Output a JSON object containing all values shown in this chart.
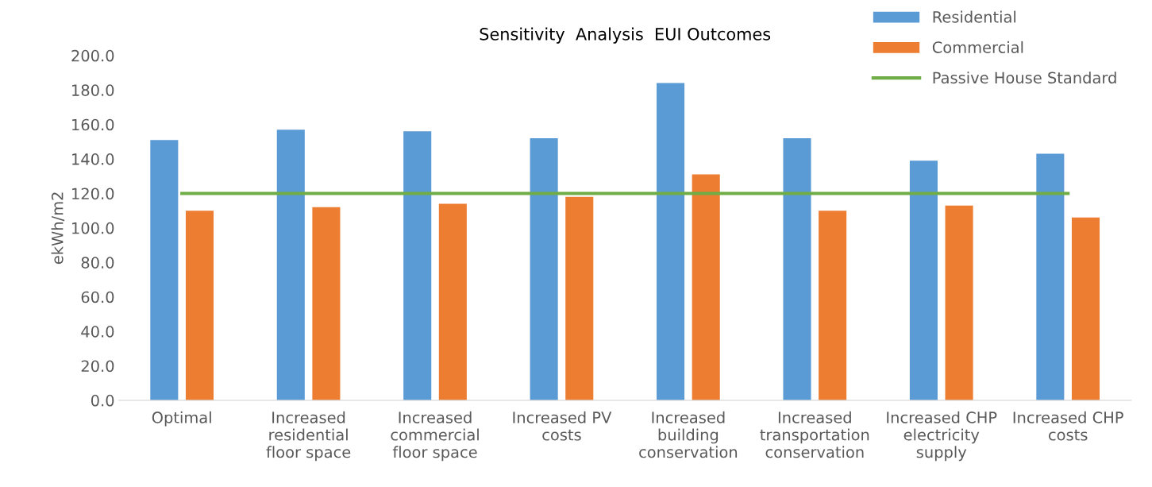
{
  "chart_data": {
    "type": "bar",
    "title": "Sensitivity  Analysis  EUI Outcomes",
    "ylabel": "ekWh/m2",
    "categories": [
      "Optimal",
      "Increased\nresidential\nfloor space",
      "Increased\ncommercial\nfloor space",
      "Increased PV\ncosts",
      "Increased\nbuilding\nconservation",
      "Increased\ntransportation\nconservation",
      "Increased CHP\nelectricity\nsupply",
      "Increased CHP\ncosts"
    ],
    "series": [
      {
        "name": "Residential",
        "color": "#5b9bd5",
        "values": [
          151,
          157,
          156,
          152,
          184,
          152,
          139,
          143
        ]
      },
      {
        "name": "Commercial",
        "color": "#ed7d31",
        "values": [
          110,
          112,
          114,
          118,
          131,
          110,
          113,
          106
        ]
      },
      {
        "name": "Passive House Standard",
        "type": "line",
        "color": "#70ad47",
        "values": [
          120,
          120,
          120,
          120,
          120,
          120,
          120,
          120
        ]
      }
    ],
    "ylim": [
      0,
      200
    ],
    "yticks": [
      {
        "value": 0,
        "label": "0.0"
      },
      {
        "value": 20,
        "label": "20.0"
      },
      {
        "value": 40,
        "label": "40.0"
      },
      {
        "value": 60,
        "label": "60.0"
      },
      {
        "value": 80,
        "label": "80.0"
      },
      {
        "value": 100,
        "label": "100.0"
      },
      {
        "value": 120,
        "label": "120.0"
      },
      {
        "value": 140,
        "label": "140.0"
      },
      {
        "value": 160,
        "label": "160.0"
      },
      {
        "value": 180,
        "label": "180.0"
      },
      {
        "value": 200,
        "label": "200.0"
      }
    ],
    "legend": "top right",
    "grid": false
  }
}
